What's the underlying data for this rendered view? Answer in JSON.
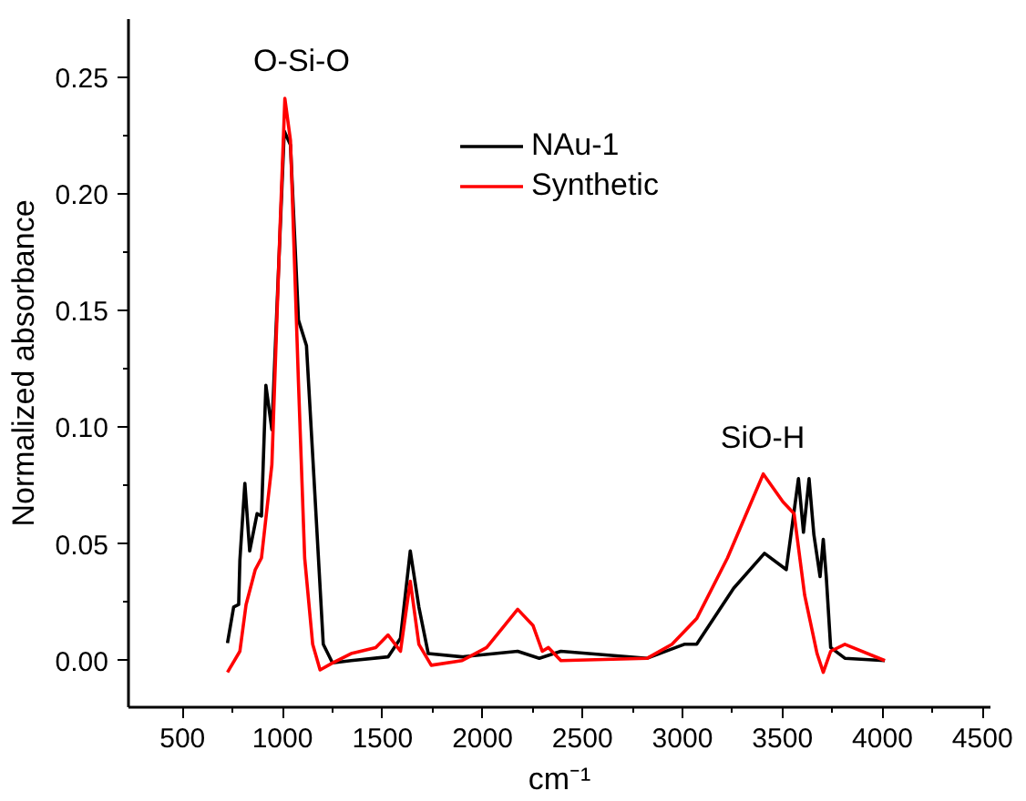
{
  "chart_data": {
    "type": "line",
    "xlabel": "cm⁻¹",
    "ylabel": "Normalized absorbance",
    "xlim": [
      230,
      4540
    ],
    "ylim": [
      -0.02,
      0.275
    ],
    "xticks": [
      500,
      1000,
      1500,
      2000,
      2500,
      3000,
      3500,
      4000,
      4500
    ],
    "yticks": [
      {
        "value": 0,
        "label": "0.00"
      },
      {
        "value": 0.05,
        "label": "0.05"
      },
      {
        "value": 0.1,
        "label": "0.10"
      },
      {
        "value": 0.15,
        "label": "0.15"
      },
      {
        "value": 0.2,
        "label": "0.20"
      },
      {
        "value": 0.25,
        "label": "0.25"
      }
    ],
    "grid": false,
    "legend": "top",
    "line_style": "solid",
    "marker": "none",
    "annotations": [
      "O-Si-O",
      "SiO-H"
    ],
    "series": [
      {
        "name": "NAu-1",
        "color": "#000000",
        "x": [
          725,
          756,
          781,
          787,
          812,
          836,
          873,
          895,
          917,
          947,
          1009,
          1040,
          1080,
          1120,
          1157,
          1204,
          1250,
          1343,
          1528,
          1590,
          1639,
          1682,
          1729,
          1898,
          2176,
          2284,
          2392,
          2824,
          2948,
          3009,
          3071,
          3256,
          3410,
          3519,
          3580,
          3605,
          3633,
          3657,
          3688,
          3704,
          3719,
          3741,
          3812,
          4012
        ],
        "values": [
          0.0075,
          0.023,
          0.024,
          0.043,
          0.076,
          0.047,
          0.063,
          0.062,
          0.118,
          0.099,
          0.227,
          0.221,
          0.146,
          0.135,
          0.079,
          0.007,
          -0.001,
          0.0,
          0.0016,
          0.0096,
          0.047,
          0.023,
          0.003,
          0.0016,
          0.004,
          0.001,
          0.004,
          0.001,
          0.005,
          0.007,
          0.007,
          0.031,
          0.046,
          0.039,
          0.078,
          0.055,
          0.078,
          0.054,
          0.036,
          0.052,
          0.036,
          0.0056,
          0.001,
          0.0
        ]
      },
      {
        "name": "Synthetic",
        "color": "#ff0000",
        "x": [
          725,
          787,
          818,
          864,
          895,
          947,
          988,
          1012,
          1040,
          1080,
          1111,
          1151,
          1188,
          1250,
          1343,
          1466,
          1528,
          1590,
          1639,
          1682,
          1744,
          1898,
          2021,
          2176,
          2253,
          2299,
          2330,
          2392,
          2824,
          2948,
          3071,
          3225,
          3404,
          3503,
          3558,
          3611,
          3673,
          3704,
          3741,
          3812,
          4012
        ],
        "values": [
          -0.005,
          0.004,
          0.024,
          0.039,
          0.044,
          0.084,
          0.186,
          0.241,
          0.223,
          0.119,
          0.044,
          0.007,
          -0.004,
          -0.001,
          0.003,
          0.0056,
          0.011,
          0.004,
          0.034,
          0.007,
          -0.002,
          0.0,
          0.0056,
          0.022,
          0.015,
          0.004,
          0.0056,
          0.0,
          0.001,
          0.007,
          0.018,
          0.044,
          0.08,
          0.068,
          0.063,
          0.028,
          0.003,
          -0.005,
          0.004,
          0.007,
          0.0
        ]
      }
    ]
  }
}
